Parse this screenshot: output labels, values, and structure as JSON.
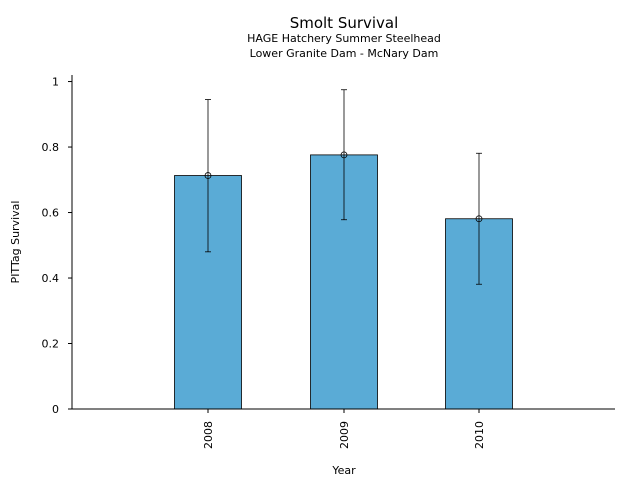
{
  "chart_data": {
    "type": "bar",
    "title": "Smolt Survival",
    "subtitle_lines": [
      "HAGE Hatchery Summer Steelhead",
      "Lower Granite Dam - McNary Dam"
    ],
    "xlabel": "Year",
    "ylabel": "PITTag Survival",
    "categories": [
      "2008",
      "2009",
      "2010"
    ],
    "series": [
      {
        "values": [
          0.713,
          0.776,
          0.581
        ],
        "error_low": [
          0.48,
          0.578,
          0.381
        ],
        "error_high": [
          0.945,
          0.975,
          0.781
        ]
      }
    ],
    "ylim": [
      0,
      1.02
    ],
    "y_ticks": [
      0,
      0.2,
      0.4,
      0.6,
      0.8,
      1
    ],
    "y_tick_labels": [
      "0",
      "0.2",
      "0.4",
      "0.6",
      "0.8",
      "1"
    ],
    "grid": false,
    "bar_color": "#5aabd6",
    "x_tick_rotation": "vertical"
  }
}
